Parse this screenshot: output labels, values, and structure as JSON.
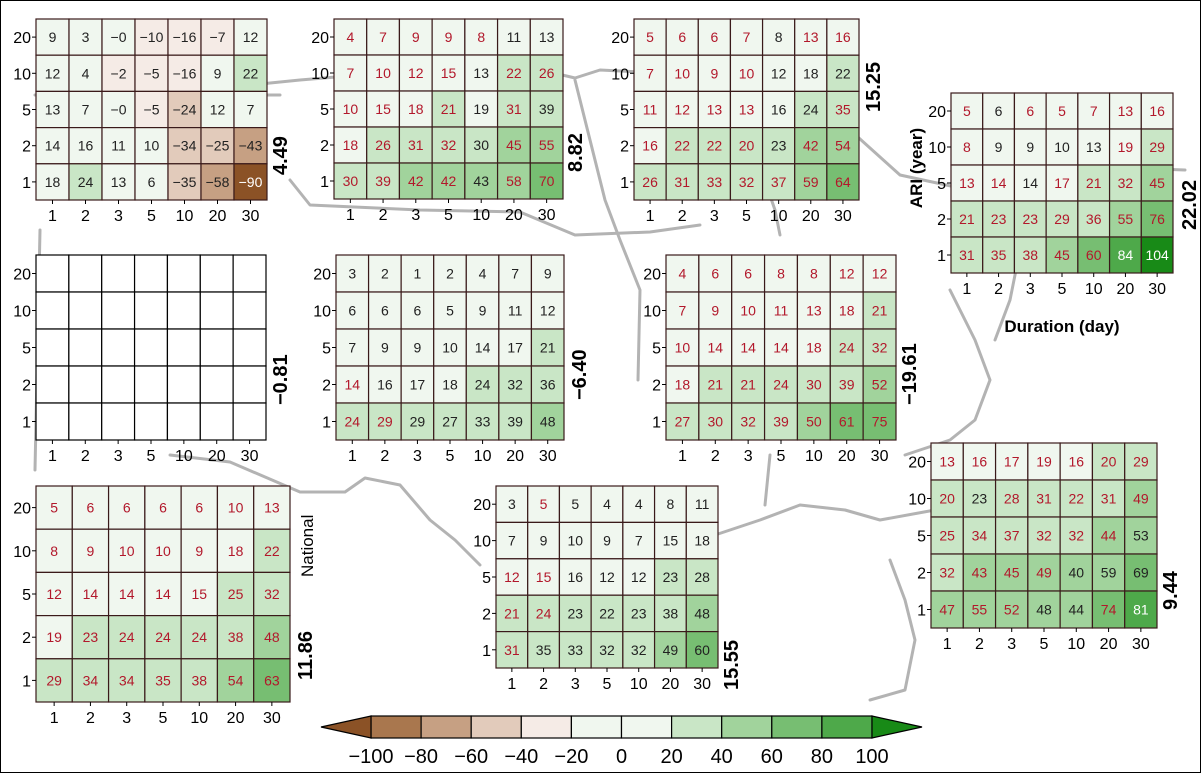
{
  "chart_data": {
    "type": "heatmap",
    "x_ticks": [
      "1",
      "2",
      "3",
      "5",
      "10",
      "20",
      "30"
    ],
    "y_ticks": [
      "20",
      "10",
      "5",
      "2",
      "1"
    ],
    "xlabel": "Duration (day)",
    "ylabel": "ARI (year)",
    "colorbar": {
      "ticks": [
        "−100",
        "−80",
        "−60",
        "−40",
        "−20",
        "0",
        "20",
        "40",
        "60",
        "80",
        "100"
      ],
      "range": [
        -100,
        100
      ],
      "colors": [
        "#8b5226",
        "#a9774e",
        "#c6a083",
        "#e2cbbb",
        "#f5ebe6",
        "#f0f7ef",
        "#c9e6c6",
        "#a1d39c",
        "#77be72",
        "#4ea94a",
        "#188a17"
      ]
    },
    "map_color": "#b3b3b3",
    "sig_text_color": "#b2182b",
    "panels": [
      {
        "label": "4.49",
        "values": [
          [
            9,
            3,
            0,
            -10,
            -16,
            -7,
            12
          ],
          [
            12,
            4,
            -2,
            -5,
            -16,
            9,
            22
          ],
          [
            13,
            7,
            0,
            -5,
            -24,
            12,
            7
          ],
          [
            14,
            16,
            11,
            10,
            -34,
            -25,
            -43
          ],
          [
            18,
            24,
            13,
            6,
            -35,
            -58,
            -90
          ]
        ],
        "sig": [
          [
            0,
            0,
            0,
            0,
            0,
            0,
            0
          ],
          [
            0,
            0,
            0,
            0,
            0,
            0,
            0
          ],
          [
            0,
            0,
            0,
            0,
            0,
            0,
            0
          ],
          [
            0,
            0,
            0,
            0,
            0,
            0,
            0
          ],
          [
            0,
            0,
            0,
            0,
            0,
            0,
            0
          ]
        ]
      },
      {
        "label": "8.82",
        "values": [
          [
            4,
            7,
            9,
            9,
            8,
            11,
            13
          ],
          [
            7,
            10,
            12,
            15,
            13,
            22,
            26
          ],
          [
            10,
            15,
            18,
            21,
            19,
            31,
            39
          ],
          [
            18,
            26,
            31,
            32,
            30,
            45,
            55
          ],
          [
            30,
            39,
            42,
            42,
            43,
            58,
            70
          ]
        ],
        "sig": [
          [
            1,
            1,
            1,
            1,
            1,
            0,
            0
          ],
          [
            1,
            1,
            1,
            1,
            0,
            1,
            1
          ],
          [
            1,
            1,
            1,
            1,
            0,
            1,
            0
          ],
          [
            1,
            1,
            1,
            1,
            0,
            1,
            1
          ],
          [
            1,
            1,
            1,
            1,
            0,
            1,
            1
          ]
        ]
      },
      {
        "label": "15.25",
        "values": [
          [
            5,
            6,
            6,
            7,
            8,
            13,
            16
          ],
          [
            7,
            10,
            9,
            10,
            12,
            18,
            22
          ],
          [
            11,
            12,
            13,
            13,
            16,
            24,
            35
          ],
          [
            16,
            22,
            22,
            20,
            23,
            42,
            54
          ],
          [
            26,
            31,
            33,
            32,
            37,
            59,
            64
          ]
        ],
        "sig": [
          [
            1,
            1,
            1,
            1,
            0,
            1,
            1
          ],
          [
            1,
            1,
            1,
            1,
            0,
            0,
            0
          ],
          [
            1,
            1,
            1,
            1,
            0,
            0,
            1
          ],
          [
            1,
            1,
            1,
            1,
            0,
            1,
            1
          ],
          [
            1,
            1,
            1,
            1,
            1,
            1,
            1
          ]
        ]
      },
      {
        "label": "22.02",
        "values": [
          [
            5,
            6,
            6,
            5,
            7,
            13,
            16
          ],
          [
            8,
            9,
            9,
            10,
            13,
            19,
            29
          ],
          [
            13,
            14,
            14,
            17,
            21,
            32,
            45
          ],
          [
            21,
            23,
            23,
            29,
            36,
            55,
            76
          ],
          [
            31,
            35,
            38,
            45,
            60,
            84,
            104
          ]
        ],
        "sig": [
          [
            1,
            0,
            1,
            1,
            1,
            1,
            1
          ],
          [
            1,
            0,
            0,
            0,
            0,
            1,
            1
          ],
          [
            1,
            1,
            0,
            1,
            1,
            1,
            1
          ],
          [
            1,
            1,
            1,
            1,
            1,
            1,
            1
          ],
          [
            1,
            1,
            1,
            1,
            1,
            1,
            1
          ]
        ]
      },
      {
        "label": "−0.81",
        "values": [],
        "sig": []
      },
      {
        "label": "−6.40",
        "values": [
          [
            3,
            2,
            1,
            2,
            4,
            7,
            9
          ],
          [
            6,
            6,
            6,
            5,
            9,
            11,
            12
          ],
          [
            7,
            9,
            9,
            10,
            14,
            17,
            21
          ],
          [
            14,
            16,
            17,
            18,
            24,
            32,
            36
          ],
          [
            24,
            29,
            29,
            27,
            33,
            39,
            48
          ]
        ],
        "sig": [
          [
            0,
            0,
            0,
            0,
            0,
            0,
            0
          ],
          [
            0,
            0,
            0,
            0,
            0,
            0,
            0
          ],
          [
            0,
            0,
            0,
            0,
            0,
            0,
            0
          ],
          [
            1,
            0,
            0,
            0,
            0,
            0,
            0
          ],
          [
            1,
            1,
            0,
            0,
            0,
            0,
            0
          ]
        ]
      },
      {
        "label": "−19.61",
        "values": [
          [
            4,
            6,
            6,
            8,
            8,
            12,
            12
          ],
          [
            7,
            9,
            10,
            11,
            13,
            18,
            21
          ],
          [
            10,
            14,
            14,
            14,
            18,
            24,
            32
          ],
          [
            18,
            21,
            21,
            24,
            30,
            39,
            52
          ],
          [
            27,
            30,
            32,
            39,
            50,
            61,
            75
          ]
        ],
        "sig": [
          [
            1,
            1,
            1,
            1,
            1,
            1,
            1
          ],
          [
            1,
            1,
            1,
            1,
            1,
            1,
            1
          ],
          [
            1,
            1,
            1,
            1,
            1,
            1,
            1
          ],
          [
            1,
            1,
            1,
            1,
            1,
            1,
            1
          ],
          [
            1,
            1,
            1,
            1,
            1,
            1,
            1
          ]
        ]
      },
      {
        "label": "11.86",
        "extra_label": "National",
        "values": [
          [
            5,
            6,
            6,
            6,
            6,
            10,
            13
          ],
          [
            8,
            9,
            10,
            10,
            9,
            18,
            22
          ],
          [
            12,
            14,
            14,
            14,
            15,
            25,
            32
          ],
          [
            19,
            23,
            24,
            24,
            24,
            38,
            48
          ],
          [
            29,
            34,
            34,
            35,
            38,
            54,
            63
          ]
        ],
        "sig": [
          [
            1,
            1,
            1,
            1,
            1,
            1,
            1
          ],
          [
            1,
            1,
            1,
            1,
            1,
            1,
            1
          ],
          [
            1,
            1,
            1,
            1,
            1,
            1,
            1
          ],
          [
            1,
            1,
            1,
            1,
            1,
            1,
            1
          ],
          [
            1,
            1,
            1,
            1,
            1,
            1,
            1
          ]
        ]
      },
      {
        "label": "15.55",
        "values": [
          [
            3,
            5,
            5,
            4,
            4,
            8,
            11
          ],
          [
            7,
            9,
            10,
            9,
            7,
            15,
            18
          ],
          [
            12,
            15,
            16,
            12,
            12,
            23,
            28
          ],
          [
            21,
            24,
            23,
            22,
            23,
            38,
            48
          ],
          [
            31,
            35,
            33,
            32,
            32,
            49,
            60
          ]
        ],
        "sig": [
          [
            0,
            1,
            0,
            0,
            0,
            0,
            0
          ],
          [
            0,
            0,
            0,
            0,
            0,
            0,
            0
          ],
          [
            1,
            1,
            0,
            0,
            0,
            0,
            0
          ],
          [
            1,
            1,
            0,
            0,
            0,
            0,
            0
          ],
          [
            1,
            0,
            0,
            0,
            0,
            0,
            0
          ]
        ]
      },
      {
        "label": "9.44",
        "values": [
          [
            13,
            16,
            17,
            19,
            16,
            20,
            29
          ],
          [
            20,
            23,
            28,
            31,
            22,
            31,
            49
          ],
          [
            25,
            34,
            37,
            32,
            32,
            44,
            53
          ],
          [
            32,
            43,
            45,
            49,
            40,
            59,
            69
          ],
          [
            47,
            55,
            52,
            48,
            44,
            74,
            81
          ]
        ],
        "sig": [
          [
            1,
            1,
            1,
            1,
            1,
            1,
            1
          ],
          [
            1,
            0,
            1,
            1,
            1,
            1,
            1
          ],
          [
            1,
            1,
            1,
            1,
            1,
            1,
            0
          ],
          [
            1,
            1,
            1,
            1,
            0,
            0,
            0
          ],
          [
            1,
            1,
            1,
            0,
            0,
            1,
            0
          ]
        ]
      }
    ]
  }
}
